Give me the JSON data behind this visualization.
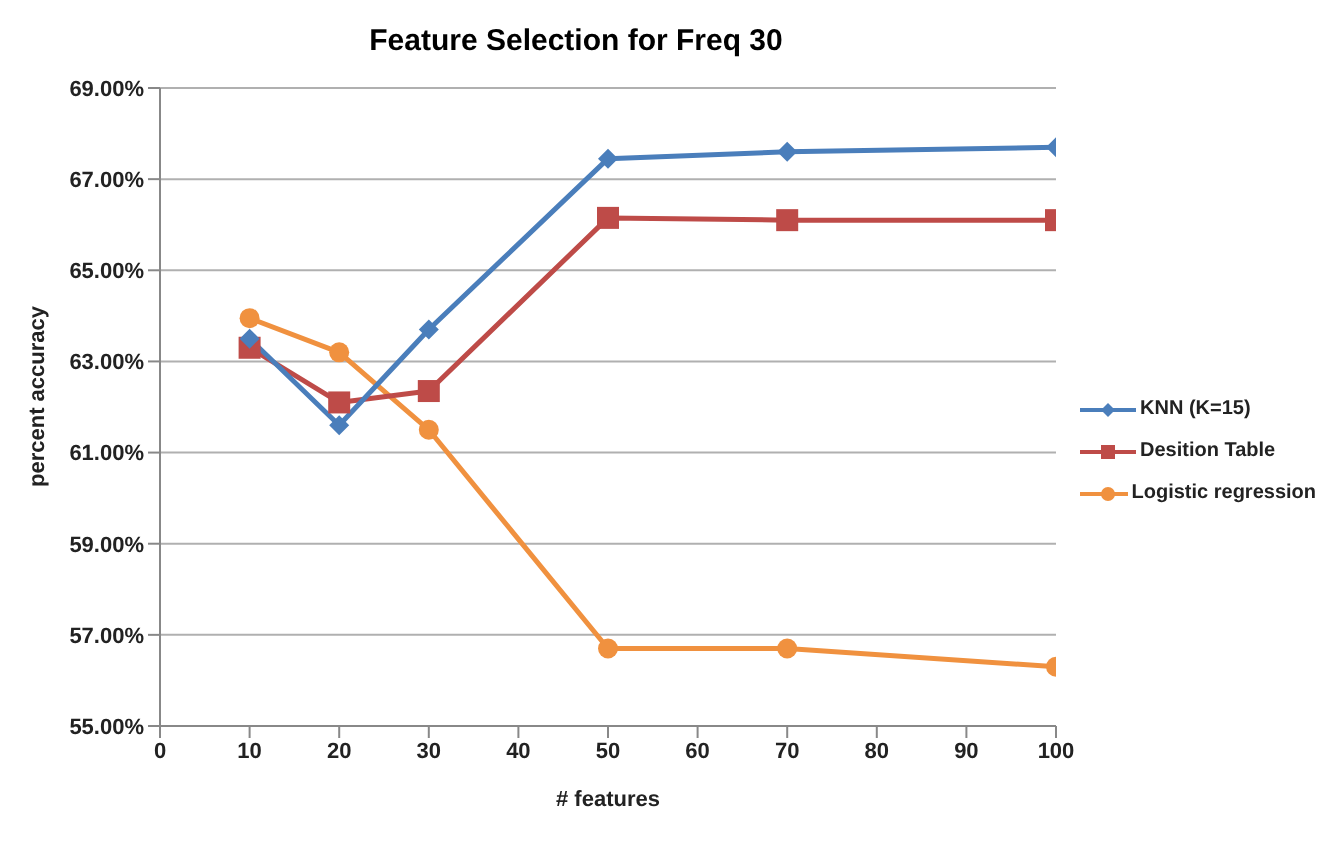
{
  "chart_data": {
    "type": "line",
    "title": "Feature Selection for Freq 30",
    "xlabel": "# features",
    "ylabel": "percent accuracy",
    "x": [
      10,
      20,
      30,
      50,
      70,
      100
    ],
    "series": [
      {
        "name": "KNN (K=15)",
        "color": "#4a7ebb",
        "marker": "diamond",
        "values": [
          63.5,
          61.6,
          63.7,
          67.45,
          67.6,
          67.7
        ]
      },
      {
        "name": "Desition Table",
        "color": "#be4b48",
        "marker": "square",
        "values": [
          63.3,
          62.1,
          62.35,
          66.15,
          66.1,
          66.1
        ]
      },
      {
        "name": "Logistic regression",
        "color": "#f0913f",
        "marker": "circle",
        "values": [
          63.95,
          63.2,
          61.5,
          56.7,
          56.7,
          56.3
        ]
      }
    ],
    "xlim": [
      0,
      100
    ],
    "xticks": [
      0,
      10,
      20,
      30,
      40,
      50,
      60,
      70,
      80,
      90,
      100
    ],
    "ylim": [
      55,
      69
    ],
    "yticks": [
      {
        "value": 55,
        "label": "55.00%"
      },
      {
        "value": 57,
        "label": "57.00%"
      },
      {
        "value": 59,
        "label": "59.00%"
      },
      {
        "value": 61,
        "label": "61.00%"
      },
      {
        "value": 63,
        "label": "63.00%"
      },
      {
        "value": 65,
        "label": "65.00%"
      },
      {
        "value": 67,
        "label": "67.00%"
      },
      {
        "value": 69,
        "label": "69.00%"
      }
    ],
    "grid": "y",
    "legend": "right",
    "line_style": "solid"
  }
}
